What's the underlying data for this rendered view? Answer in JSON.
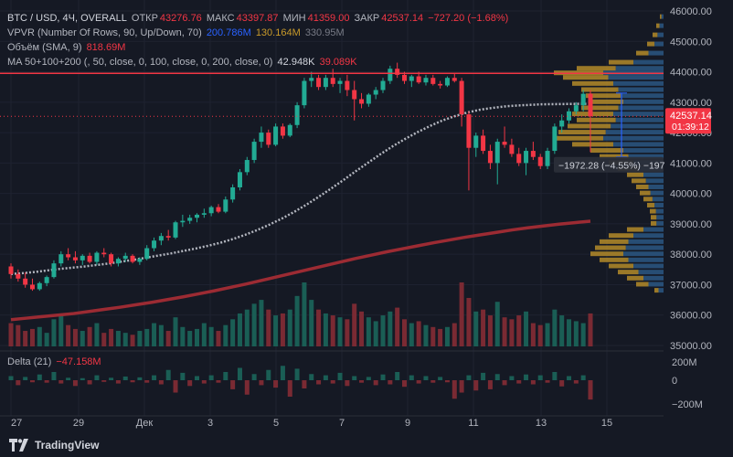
{
  "legend": {
    "symbol": "BTC / USD, 4Ч, OVERALL",
    "open_label": "ОТКР",
    "open": "43276.76",
    "high_label": "МАКС",
    "high": "43397.87",
    "low_label": "МИН",
    "low": "41359.00",
    "close_label": "ЗАКР",
    "close": "42537.14",
    "change": "−727.20 (−1.68%)",
    "vpvr_label": "VPVR (Number Of Rows, 90, Up/Down, 70)",
    "vpvr_v1": "200.786M",
    "vpvr_v2": "130.164M",
    "vpvr_v3": "330.95M",
    "volume_label": "Объём (SMA, 9)",
    "volume_value": "818.69M",
    "ma_label": "MA 50+100+200 (, 50, close, 0, 100, close, 0, 200, close, 0)",
    "ma_v1": "42.948K",
    "ma_v2": "39.089K"
  },
  "delta": {
    "label": "Delta (21)",
    "value": "−47.158M"
  },
  "price_axis": [
    "46000.00",
    "45000.00",
    "44000.00",
    "43000.00",
    "42000.00",
    "41000.00",
    "40000.00",
    "39000.00",
    "38000.00",
    "37000.00",
    "36000.00",
    "35000.00"
  ],
  "delta_axis": [
    "200M",
    "0",
    "−200M"
  ],
  "time_axis": [
    "27",
    "29",
    "Дек",
    "3",
    "5",
    "7",
    "9",
    "11",
    "13",
    "15"
  ],
  "current_price": {
    "price": "42537.14",
    "timer": "01:39:12"
  },
  "measure": {
    "text": "−1972.28 (−4.55%) −197"
  },
  "brand": "TradingView",
  "colors": {
    "up": "#22ab94",
    "down": "#f23645",
    "ma50": "#b2b5be",
    "ma200": "#9c2b33",
    "background": "#151924",
    "resistance": "#f23645"
  },
  "chart_data": {
    "type": "candlestick",
    "symbol": "BTC / USD",
    "interval": "4Ч",
    "ylim": [
      35000,
      46000
    ],
    "resistance_line": 43950,
    "candles": [
      [
        37600,
        37700,
        37200,
        37350
      ],
      [
        37350,
        37500,
        37100,
        37200
      ],
      [
        37200,
        37400,
        36900,
        37000
      ],
      [
        37000,
        37200,
        36800,
        36850
      ],
      [
        36850,
        37100,
        36800,
        37050
      ],
      [
        37050,
        37300,
        36950,
        37250
      ],
      [
        37250,
        37800,
        37200,
        37700
      ],
      [
        37700,
        38100,
        37600,
        38000
      ],
      [
        38000,
        38200,
        37800,
        37900
      ],
      [
        37900,
        38100,
        37700,
        37800
      ],
      [
        37800,
        38000,
        37650,
        37950
      ],
      [
        37950,
        38050,
        37700,
        37750
      ],
      [
        37750,
        38100,
        37650,
        38050
      ],
      [
        38050,
        38200,
        37900,
        38000
      ],
      [
        38000,
        38050,
        37600,
        37700
      ],
      [
        37700,
        37900,
        37600,
        37850
      ],
      [
        37850,
        38050,
        37750,
        37950
      ],
      [
        37950,
        38000,
        37700,
        37750
      ],
      [
        37750,
        37900,
        37650,
        37850
      ],
      [
        37850,
        38300,
        37800,
        38200
      ],
      [
        38200,
        38550,
        38100,
        38450
      ],
      [
        38450,
        38700,
        38300,
        38600
      ],
      [
        38600,
        38800,
        38450,
        38550
      ],
      [
        38550,
        39100,
        38500,
        39050
      ],
      [
        39050,
        39300,
        38900,
        39100
      ],
      [
        39100,
        39300,
        39000,
        39200
      ],
      [
        39200,
        39350,
        39050,
        39300
      ],
      [
        39300,
        39500,
        39200,
        39350
      ],
      [
        39350,
        39600,
        39250,
        39550
      ],
      [
        39550,
        39650,
        39350,
        39400
      ],
      [
        39400,
        39900,
        39350,
        39800
      ],
      [
        39800,
        40300,
        39700,
        40200
      ],
      [
        40200,
        40800,
        40100,
        40700
      ],
      [
        40700,
        41200,
        40600,
        41100
      ],
      [
        41100,
        41800,
        41000,
        41700
      ],
      [
        41700,
        42200,
        41500,
        42000
      ],
      [
        42000,
        42100,
        41500,
        41600
      ],
      [
        41600,
        42300,
        41550,
        42200
      ],
      [
        42200,
        42300,
        41800,
        41900
      ],
      [
        41900,
        42300,
        41850,
        42250
      ],
      [
        42250,
        43000,
        42150,
        42900
      ],
      [
        42900,
        43800,
        42800,
        43700
      ],
      [
        43700,
        44000,
        43500,
        43800
      ],
      [
        43800,
        43900,
        43400,
        43500
      ],
      [
        43500,
        43900,
        43400,
        43800
      ],
      [
        43800,
        44100,
        43500,
        43600
      ],
      [
        43600,
        43800,
        43300,
        43700
      ],
      [
        43700,
        43900,
        43200,
        43400
      ],
      [
        43400,
        43700,
        42400,
        43100
      ],
      [
        43100,
        43300,
        42800,
        42950
      ],
      [
        42950,
        43300,
        42850,
        43250
      ],
      [
        43250,
        43500,
        43100,
        43400
      ],
      [
        43400,
        43800,
        43300,
        43700
      ],
      [
        43700,
        44200,
        43600,
        44100
      ],
      [
        44100,
        44300,
        43800,
        43900
      ],
      [
        43900,
        44000,
        43600,
        43700
      ],
      [
        43700,
        43900,
        43500,
        43850
      ],
      [
        43850,
        44000,
        43600,
        43650
      ],
      [
        43650,
        43900,
        43550,
        43800
      ],
      [
        43800,
        43900,
        43550,
        43600
      ],
      [
        43600,
        43700,
        43450,
        43550
      ],
      [
        43550,
        43850,
        43500,
        43800
      ],
      [
        43800,
        43950,
        43650,
        43700
      ],
      [
        43700,
        43800,
        42200,
        42600
      ],
      [
        42600,
        42700,
        40100,
        41500
      ],
      [
        41500,
        42000,
        41200,
        41900
      ],
      [
        41900,
        42100,
        41300,
        41400
      ],
      [
        41400,
        41600,
        40800,
        41000
      ],
      [
        41000,
        41800,
        40300,
        41700
      ],
      [
        41700,
        42200,
        41500,
        41600
      ],
      [
        41600,
        41800,
        41200,
        41300
      ],
      [
        41300,
        41500,
        40900,
        41000
      ],
      [
        41000,
        41500,
        40600,
        41400
      ],
      [
        41400,
        41700,
        41100,
        41200
      ],
      [
        41200,
        41300,
        40800,
        40900
      ],
      [
        40900,
        41500,
        40800,
        41400
      ],
      [
        41400,
        42300,
        41300,
        42200
      ],
      [
        42200,
        42600,
        42000,
        42400
      ],
      [
        42400,
        42800,
        42300,
        42700
      ],
      [
        42700,
        43000,
        42600,
        42900
      ],
      [
        42900,
        43400,
        42700,
        43277
      ],
      [
        43277,
        43398,
        41359,
        42537
      ]
    ],
    "ma50": [
      37350,
      37380,
      37420,
      37470,
      37520,
      37560,
      37600,
      37650,
      37700,
      37760,
      37820,
      37890,
      37960,
      38030,
      38110,
      38190,
      38280,
      38380,
      38500,
      38640,
      38800,
      38980,
      39180,
      39400,
      39640,
      39900,
      40170,
      40450,
      40740,
      41020,
      41300,
      41560,
      41800,
      42020,
      42220,
      42400,
      42540,
      42660,
      42750,
      42810,
      42860,
      42890,
      42910,
      42930,
      42935,
      42940,
      42945,
      42948
    ],
    "ma200": [
      35850,
      35900,
      35950,
      36000,
      36050,
      36120,
      36190,
      36260,
      36340,
      36420,
      36510,
      36600,
      36700,
      36800,
      36910,
      37020,
      37140,
      37260,
      37380,
      37500,
      37620,
      37740,
      37860,
      37970,
      38080,
      38180,
      38280,
      38380,
      38470,
      38560,
      38640,
      38720,
      38800,
      38870,
      38930,
      38990,
      39040,
      39089
    ],
    "volume": [
      60,
      55,
      40,
      45,
      50,
      35,
      70,
      80,
      55,
      45,
      40,
      50,
      60,
      35,
      45,
      40,
      35,
      30,
      40,
      45,
      60,
      55,
      40,
      75,
      50,
      40,
      45,
      60,
      50,
      40,
      55,
      70,
      85,
      95,
      110,
      120,
      95,
      80,
      85,
      95,
      130,
      165,
      120,
      95,
      85,
      80,
      75,
      70,
      110,
      90,
      75,
      65,
      80,
      90,
      100,
      70,
      60,
      65,
      55,
      50,
      45,
      50,
      60,
      165,
      125,
      90,
      95,
      80,
      115,
      75,
      70,
      80,
      90,
      60,
      55,
      60,
      95,
      80,
      70,
      65,
      60,
      85
    ],
    "delta": [
      10,
      -12,
      8,
      -5,
      14,
      -6,
      20,
      -8,
      6,
      -14,
      5,
      -10,
      12,
      -4,
      6,
      -8,
      9,
      -5,
      7,
      -6,
      12,
      -10,
      25,
      -30,
      18,
      -14,
      10,
      -8,
      12,
      -6,
      20,
      -22,
      30,
      -35,
      15,
      -12,
      25,
      -18,
      35,
      -40,
      28,
      -20,
      15,
      -10,
      12,
      -8,
      18,
      -14,
      10,
      -6,
      8,
      -12,
      14,
      -10,
      20,
      -16,
      12,
      -8,
      10,
      -6,
      8,
      -5,
      -45,
      -30,
      12,
      -25,
      18,
      -22,
      15,
      -12,
      10,
      -8,
      14,
      -10,
      12,
      -6,
      20,
      -15,
      10,
      -8,
      12,
      -47
    ]
  }
}
